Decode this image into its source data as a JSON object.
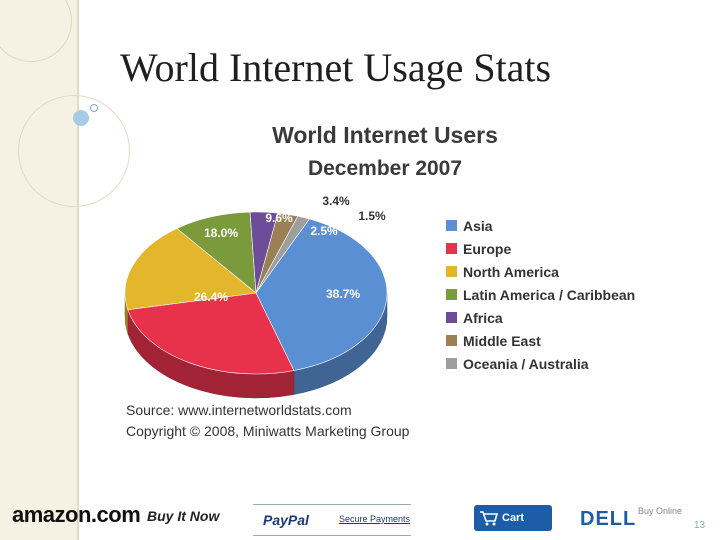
{
  "slide": {
    "title": "World Internet Usage Stats",
    "page_number": "13"
  },
  "chart_data": {
    "type": "pie",
    "style": "3d",
    "title": "World Internet Users",
    "subtitle": "December 2007",
    "legend_position": "right",
    "slices": [
      {
        "name": "Asia",
        "value": 38.7,
        "label": "38.7%",
        "color": "#5b8fd3"
      },
      {
        "name": "Europe",
        "value": 26.4,
        "label": "26.4%",
        "color": "#e8324c"
      },
      {
        "name": "North America",
        "value": 18.0,
        "label": "18.0%",
        "color": "#e3b62c"
      },
      {
        "name": "Latin America / Caribbean",
        "value": 9.6,
        "label": "9.6%",
        "color": "#7a9a3c"
      },
      {
        "name": "Africa",
        "value": 3.4,
        "label": "3.4%",
        "color": "#6d4c9a"
      },
      {
        "name": "Middle East",
        "value": 2.5,
        "label": "2.5%",
        "color": "#9c8055"
      },
      {
        "name": "Oceania / Australia",
        "value": 1.5,
        "label": "1.5%",
        "color": "#9e9e9e"
      }
    ],
    "source_lines": [
      "Source: www.internetworldstats.com",
      "Copyright © 2008, Miniwatts Marketing Group"
    ]
  },
  "footer": {
    "amazon": "amazon.com",
    "buy_it_now": "Buy It Now",
    "paypal": "PayPal",
    "secure_payments": "Secure Payments",
    "cart": "Cart",
    "dell": "DELL",
    "buy_online": "Buy Online"
  }
}
